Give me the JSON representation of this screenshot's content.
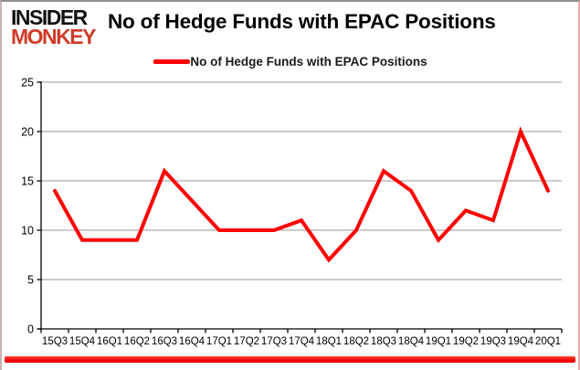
{
  "branding": {
    "logo_line1": "INSIDER",
    "logo_line2": "MONKEY",
    "logo_color1": "#111111",
    "logo_color2": "#d03a27"
  },
  "header": {
    "title": "No of Hedge Funds with EPAC Positions"
  },
  "legend": {
    "label": "No of Hedge Funds with EPAC Positions",
    "line_color": "#fe0000"
  },
  "chart_data": {
    "type": "line",
    "title": "No of Hedge Funds with EPAC Positions",
    "series_name": "No of Hedge Funds with EPAC Positions",
    "categories": [
      "15Q3",
      "15Q4",
      "16Q1",
      "16Q2",
      "16Q3",
      "16Q4",
      "17Q1",
      "17Q2",
      "17Q3",
      "17Q4",
      "18Q1",
      "18Q2",
      "18Q3",
      "18Q4",
      "19Q1",
      "19Q2",
      "19Q3",
      "19Q4",
      "20Q1"
    ],
    "values": [
      14,
      9,
      9,
      9,
      16,
      13,
      10,
      10,
      10,
      11,
      7,
      10,
      16,
      14,
      9,
      12,
      11,
      20,
      14
    ],
    "ylim": [
      0,
      25
    ],
    "yticks": [
      0,
      5,
      10,
      15,
      20,
      25
    ],
    "grid": true,
    "legend_position": "top",
    "line_color": "#fe0000",
    "grid_color": "#9a9a9a",
    "axis_color": "#000000"
  }
}
